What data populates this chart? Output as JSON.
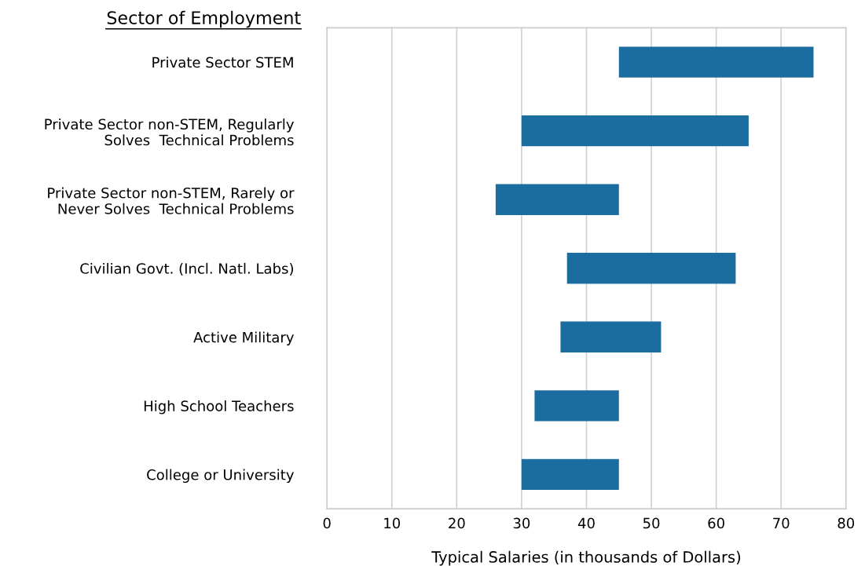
{
  "chart_data": {
    "type": "bar",
    "orientation": "horizontal",
    "ylabel": "Sector of Employment",
    "xlabel": "Typical Salaries (in thousands of Dollars)",
    "categories": [
      "Private Sector STEM",
      "Private Sector non-STEM, Regularly\nSolves  Technical Problems",
      "Private Sector non-STEM, Rarely or\nNever Solves  Technical Problems",
      "Civilian Govt. (Incl. Natl. Labs)",
      "Active Military",
      "High School Teachers",
      "College or University"
    ],
    "base": [
      45,
      30,
      26,
      37,
      36,
      32,
      30
    ],
    "values": [
      30,
      35,
      19,
      26,
      15.5,
      13,
      15
    ],
    "color": "#1b6d9f",
    "xlim": [
      0,
      80
    ],
    "xticks": [
      0,
      10,
      20,
      30,
      40,
      50,
      60,
      70,
      80
    ],
    "grid": "x"
  }
}
